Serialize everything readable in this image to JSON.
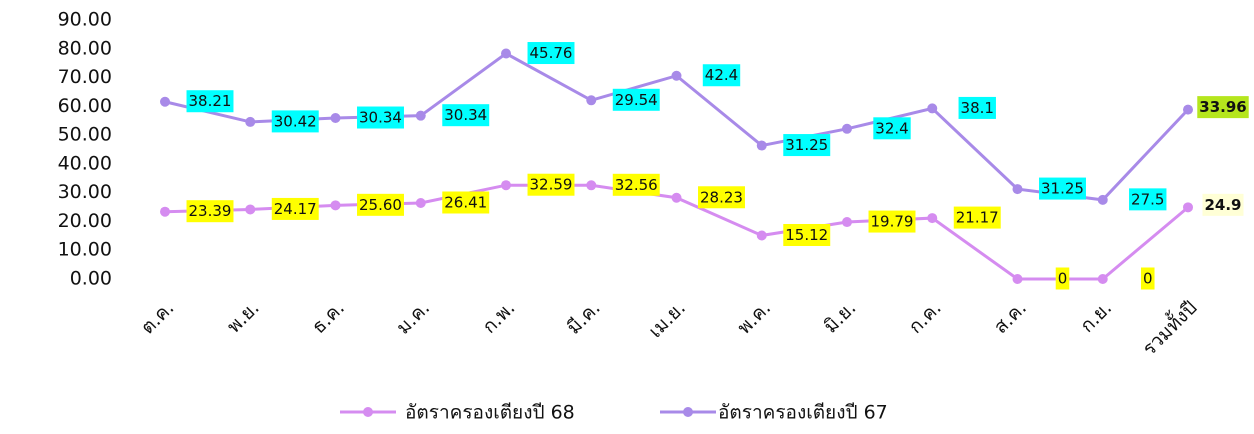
{
  "chart_data": {
    "type": "line",
    "stacked": true,
    "categories": [
      "ต.ค.",
      "พ.ย.",
      "ธ.ค.",
      "ม.ค.",
      "ก.พ.",
      "มี.ค.",
      "เม.ย.",
      "พ.ค.",
      "มิ.ย.",
      "ก.ค.",
      "ส.ค.",
      "ก.ย.",
      "รวมทั้งปี"
    ],
    "series": [
      {
        "name": "อัตราครองเตียงปี 68",
        "color": "#d58cf0",
        "label_color": "#ffff00",
        "values": [
          23.39,
          24.17,
          25.6,
          26.41,
          32.59,
          32.56,
          28.23,
          15.12,
          19.79,
          21.17,
          0,
          0,
          24.9
        ],
        "value_labels": [
          "23.39",
          "24.17",
          "25.60",
          "26.41",
          "32.59",
          "32.56",
          "28.23",
          "15.12",
          "19.79",
          "21.17",
          "0",
          "0",
          "24.9"
        ]
      },
      {
        "name": "อัตราครองเตียงปี 67",
        "color": "#a88ae8",
        "label_color": "#00ffff",
        "values": [
          38.21,
          30.42,
          30.34,
          30.34,
          45.76,
          29.54,
          42.4,
          31.25,
          32.4,
          38.1,
          31.25,
          27.5,
          33.96
        ],
        "value_labels": [
          "38.21",
          "30.42",
          "30.34",
          "30.34",
          "45.76",
          "29.54",
          "42.4",
          "31.25",
          "32.4",
          "38.1",
          "31.25",
          "27.5",
          "33.96"
        ]
      }
    ],
    "ylim": [
      0,
      90
    ],
    "yticks": [
      {
        "value": 0,
        "label": "0.00"
      },
      {
        "value": 10,
        "label": "10.00"
      },
      {
        "value": 20,
        "label": "20.00"
      },
      {
        "value": 30,
        "label": "30.00"
      },
      {
        "value": 40,
        "label": "40.00"
      },
      {
        "value": 50,
        "label": "50.00"
      },
      {
        "value": 60,
        "label": "60.00"
      },
      {
        "value": 70,
        "label": "70.00"
      },
      {
        "value": 80,
        "label": "80.00"
      },
      {
        "value": 90,
        "label": "90.00"
      }
    ],
    "grid": false,
    "legend": "bottom"
  }
}
